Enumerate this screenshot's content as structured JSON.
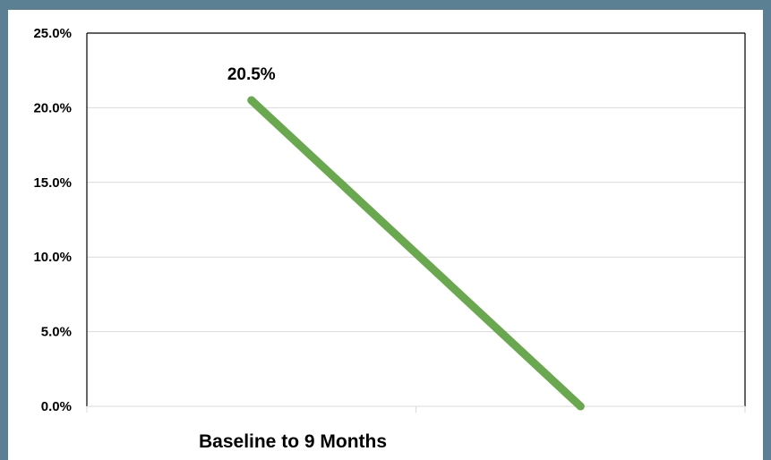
{
  "chart_data": {
    "type": "line",
    "categories": [
      "Baseline to 9 Months"
    ],
    "x": [
      0,
      1
    ],
    "series": [
      {
        "values": [
          20.5,
          0.0
        ],
        "color": "#6aa84f"
      }
    ],
    "data_labels": [
      "20.5%"
    ],
    "y_ticks": [
      "0.0%",
      "5.0%",
      "10.0%",
      "15.0%",
      "20.0%",
      "25.0%"
    ],
    "ylim": [
      0,
      25
    ],
    "grid": true,
    "title": "",
    "xlabel": "",
    "ylabel": ""
  }
}
